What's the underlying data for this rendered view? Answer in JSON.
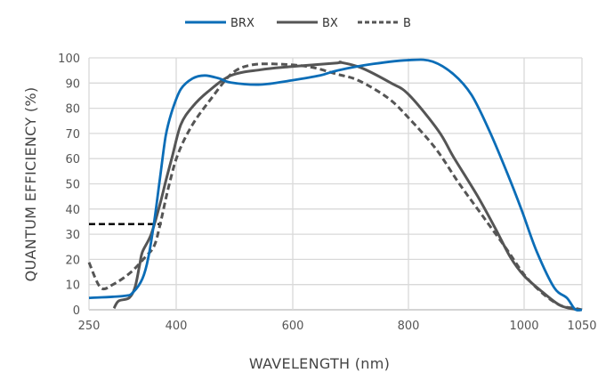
{
  "chart_data": {
    "type": "line",
    "title": "",
    "xlabel": "WAVELENGTH (nm)",
    "ylabel": "QUANTUM EFFICIENCY (%)",
    "x_ticks": [
      250,
      400,
      600,
      800,
      1000,
      1050
    ],
    "y_ticks": [
      0,
      10,
      20,
      30,
      40,
      50,
      60,
      70,
      80,
      90,
      100
    ],
    "xlim": [
      250,
      1050
    ],
    "ylim": [
      0,
      100
    ],
    "grid": true,
    "legend_position": "top-center",
    "series": [
      {
        "name": "BRX",
        "color": "#0b6db7",
        "style": "solid",
        "x": [
          250,
          311,
          326,
          342,
          352,
          362,
          372,
          382,
          393,
          408,
          428,
          449,
          474,
          494,
          545,
          596,
          647,
          677,
          739,
          806,
          842,
          878,
          909,
          940,
          970,
          996,
          1011,
          1026,
          1037,
          1044,
          1050
        ],
        "y": [
          4.7,
          5.5,
          7,
          12.4,
          20.6,
          34.7,
          52,
          69,
          79,
          87.6,
          91.8,
          93,
          91.8,
          90.2,
          89.4,
          91,
          93,
          95,
          97.6,
          99.2,
          98.5,
          93.5,
          85.3,
          71,
          54.7,
          39.4,
          23,
          8.8,
          4.7,
          0.2,
          0
        ]
      },
      {
        "name": "BX",
        "color": "#555555",
        "style": "solid",
        "x": [
          293,
          301,
          319,
          329,
          337,
          342,
          357,
          372,
          382,
          393,
          408,
          428,
          454,
          494,
          545,
          596,
          677,
          683,
          719,
          770,
          801,
          852,
          878,
          919,
          950,
          976,
          1000,
          1016,
          1031,
          1044,
          1050
        ],
        "y": [
          0.6,
          3.5,
          4.7,
          8.8,
          17.6,
          23,
          30,
          41.8,
          51,
          60.6,
          73.5,
          80.6,
          86.5,
          93,
          95.3,
          96.5,
          98,
          98.2,
          96,
          90,
          85.3,
          71,
          60.6,
          45.3,
          32.4,
          21,
          13.5,
          7,
          1.8,
          0.2,
          0
        ]
      },
      {
        "name": "B",
        "color": "#555555",
        "style": "dashed",
        "x": [
          250,
          270,
          291,
          321,
          347,
          362,
          372,
          387,
          403,
          428,
          459,
          494,
          525,
          566,
          627,
          677,
          714,
          765,
          801,
          847,
          888,
          929,
          970,
          1000,
          1016,
          1031,
          1044,
          1050
        ],
        "y": [
          18.8,
          8.8,
          10,
          14.7,
          21,
          25.3,
          33.5,
          48.8,
          61.8,
          73.5,
          83.5,
          93.5,
          97,
          97.6,
          96.5,
          93.5,
          91,
          84,
          76,
          64,
          50,
          37,
          24,
          14,
          6.5,
          1.8,
          0.6,
          0
        ]
      }
    ],
    "annotations": [
      {
        "type": "reference-line",
        "color": "#000000",
        "style": "dashed",
        "y": 34,
        "x": [
          250,
          375
        ]
      }
    ]
  }
}
